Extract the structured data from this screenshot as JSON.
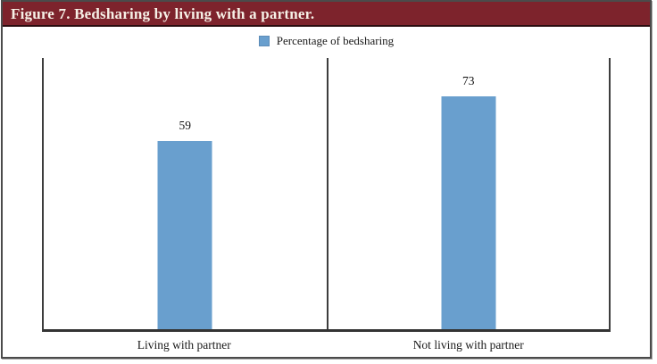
{
  "header": {
    "title": "Figure 7. Bedsharing by living with a partner."
  },
  "legend": {
    "label": "Percentage of bedsharing",
    "swatch_color": "#699FCE"
  },
  "chart_data": {
    "type": "bar",
    "title": "Figure 7. Bedsharing by living with a partner.",
    "categories": [
      "Living with partner",
      "Not living with partner"
    ],
    "series": [
      {
        "name": "Percentage of bedsharing",
        "values": [
          59,
          73
        ]
      }
    ],
    "values": [
      59,
      73
    ],
    "data_labels": [
      "59",
      "73"
    ],
    "xlabel": "",
    "ylabel": "",
    "ylim": [
      0,
      85
    ],
    "y_axis_ticks_visible": false,
    "gridlines": false,
    "legend_position": "top-center",
    "panel_divider": true,
    "bar_color": "#699FCE"
  },
  "colors": {
    "header_bg": "#7D232C",
    "header_text": "#F6F1E7",
    "frame_border": "#4B4B4B",
    "axis_line": "#3D3D3D",
    "bar_fill": "#699FCE"
  }
}
